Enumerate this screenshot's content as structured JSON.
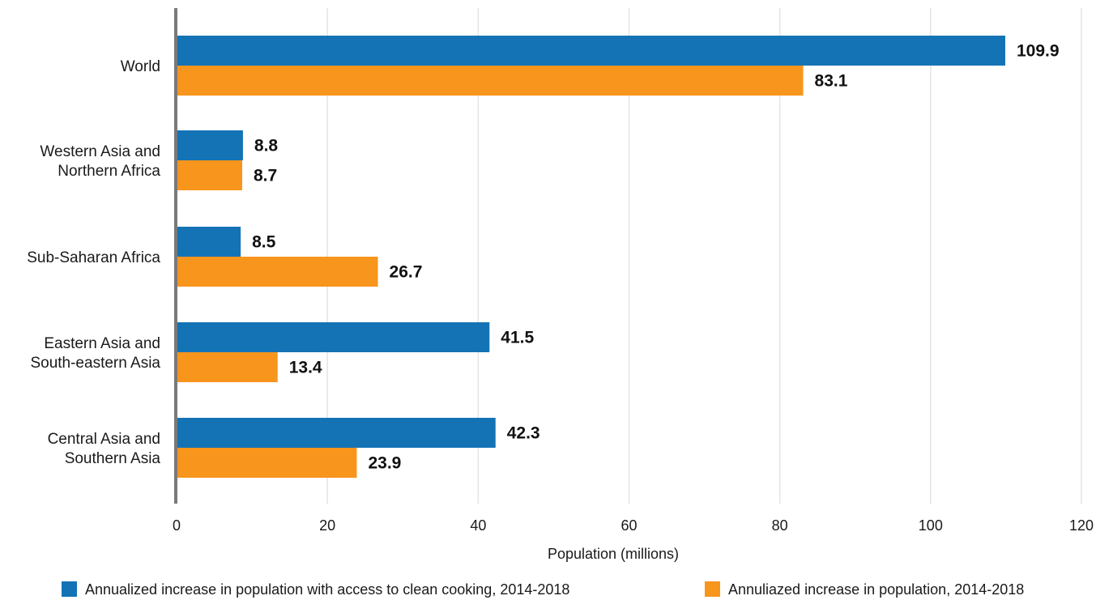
{
  "chart_data": {
    "type": "bar",
    "orientation": "horizontal",
    "categories": [
      [
        "World"
      ],
      [
        "Western Asia and",
        "Northern Africa"
      ],
      [
        "Sub-Saharan Africa"
      ],
      [
        "Eastern Asia and",
        "South-eastern Asia"
      ],
      [
        "Central Asia and",
        "Southern Asia"
      ]
    ],
    "series": [
      {
        "name": "Annualized increase in population with access to clean cooking, 2014-2018",
        "color": "#1473b5",
        "values": [
          109.9,
          8.8,
          8.5,
          41.5,
          42.3
        ],
        "labels": [
          "109.9",
          "8.8",
          "8.5",
          "41.5",
          "42.3"
        ]
      },
      {
        "name": "Annuliazed increase in population, 2014-2018",
        "color": "#f7951d",
        "values": [
          83.1,
          8.7,
          26.7,
          13.4,
          23.9
        ],
        "labels": [
          "83.1",
          "8.7",
          "26.7",
          "13.4",
          "23.9"
        ]
      }
    ],
    "xlabel": "Population (millions)",
    "ylabel": "",
    "xlim": [
      0,
      120
    ],
    "xticks": [
      0,
      20,
      40,
      60,
      80,
      100,
      120
    ],
    "grid": true,
    "legend_position": "bottom"
  }
}
